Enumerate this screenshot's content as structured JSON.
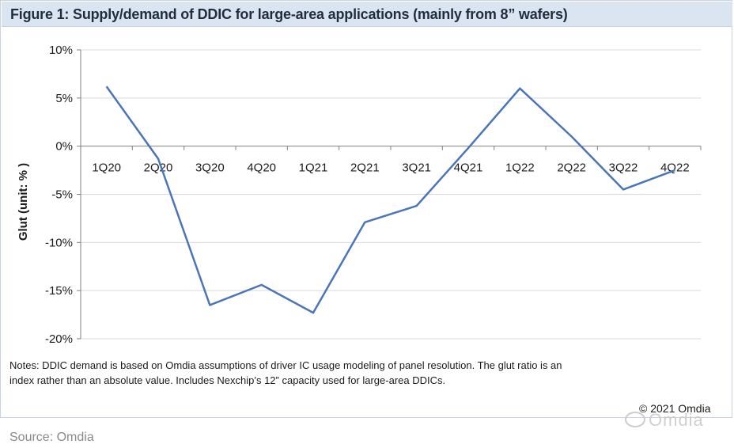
{
  "title": "Figure 1: Supply/demand of DDIC for large-area applications (mainly from 8” wafers)",
  "chart_data": {
    "type": "line",
    "title": "Figure 1: Supply/demand of DDIC for large-area applications (mainly from 8” wafers)",
    "xlabel": "",
    "ylabel": "Glut (unit: % )",
    "categories": [
      "1Q20",
      "2Q20",
      "3Q20",
      "4Q20",
      "1Q21",
      "2Q21",
      "3Q21",
      "4Q21",
      "1Q22",
      "2Q22",
      "3Q22",
      "4Q22"
    ],
    "series": [
      {
        "name": "Glut",
        "values": [
          6.2,
          -1.3,
          -16.5,
          -14.4,
          -17.3,
          -7.9,
          -6.2,
          -0.2,
          6.0,
          1.0,
          -4.5,
          -2.5
        ]
      }
    ],
    "ylim": [
      -20,
      10
    ],
    "yticks": [
      10,
      5,
      0,
      -5,
      -10,
      -15,
      -20
    ],
    "ytick_labels": [
      "10%",
      "5%",
      "0%",
      "-5%",
      "-10%",
      "-15%",
      "-20%"
    ],
    "grid": true,
    "line_color": "#4a76b8"
  },
  "notes": "Notes: DDIC demand is based on Omdia assumptions of driver IC usage modeling of panel resolution. The glut ratio is an index rather than an absolute value. Includes Nexchip’s 12” capacity used for large-area DDICs.",
  "copyright": "© 2021 Omdia",
  "watermark": "Omdia",
  "source": "Source: Omdia"
}
